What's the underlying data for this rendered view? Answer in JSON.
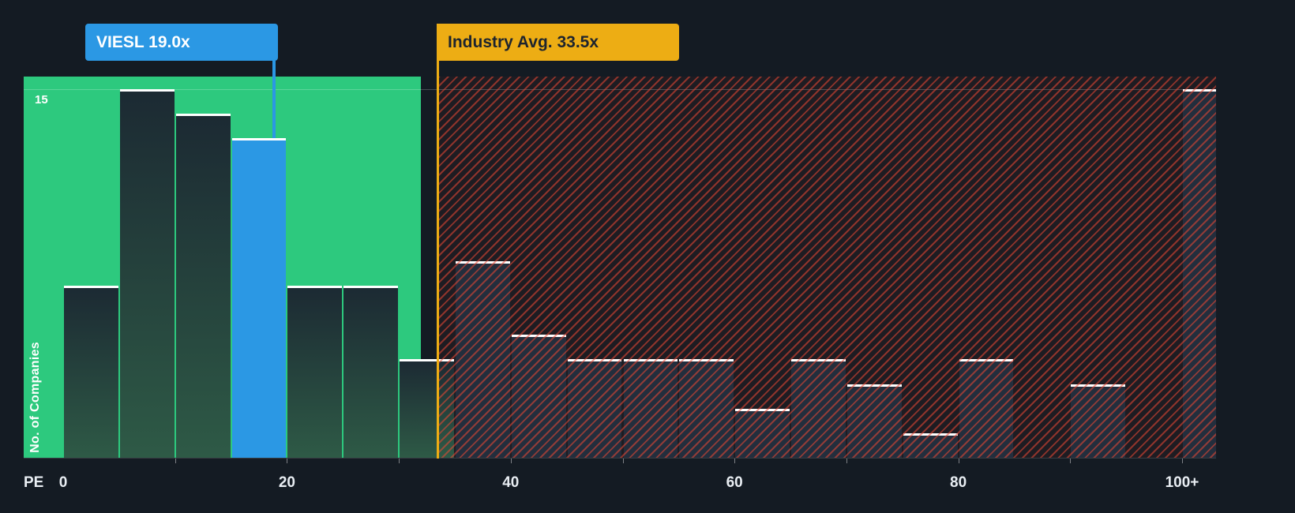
{
  "colors": {
    "background": "#141b23",
    "below_avg_region_green": "#2dc97e",
    "above_avg_hatch_red": "#e84734",
    "highlight_blue": "#2b98e4",
    "industry_yellow": "#edad14",
    "bar_cap_white": "#ffffff",
    "bar_dark_fill": "#232e3d"
  },
  "chart_data": {
    "type": "bar",
    "subtype": "histogram",
    "xlabel": "PE",
    "ylabel": "No. of Companies",
    "x_tick_labels": [
      "0",
      "20",
      "40",
      "60",
      "80",
      "100+"
    ],
    "x_tick_values": [
      0,
      20,
      40,
      60,
      80,
      100
    ],
    "y_gridline_label": "15",
    "y_gridline_value": 15,
    "ylim": [
      0,
      15.5
    ],
    "xlim": [
      0,
      103.5
    ],
    "bin_width": 5,
    "bin_starts": [
      0,
      5,
      10,
      15,
      20,
      25,
      30,
      35,
      40,
      45,
      50,
      55,
      60,
      65,
      70,
      75,
      80,
      85,
      90,
      95,
      100
    ],
    "categories": [
      "0-5",
      "5-10",
      "10-15",
      "15-20",
      "20-25",
      "25-30",
      "30-35",
      "35-40",
      "40-45",
      "45-50",
      "50-55",
      "55-60",
      "60-65",
      "65-70",
      "70-75",
      "75-80",
      "80-85",
      "85-90",
      "90-95",
      "95-100",
      "100+"
    ],
    "values": [
      7,
      15,
      14,
      13,
      7,
      7,
      4,
      8,
      5,
      4,
      4,
      4,
      2,
      4,
      3,
      1,
      4,
      0,
      3,
      0,
      15
    ],
    "highlight": {
      "index": 3,
      "label": "VIESL 19.0x",
      "ticker": "VIESL",
      "pe_value": "19.0x"
    },
    "industry_avg": {
      "label": "Industry Avg. 33.5x",
      "value": 33.5
    },
    "grid": "single horizontal gridline at y=15",
    "legend_position": "none"
  }
}
